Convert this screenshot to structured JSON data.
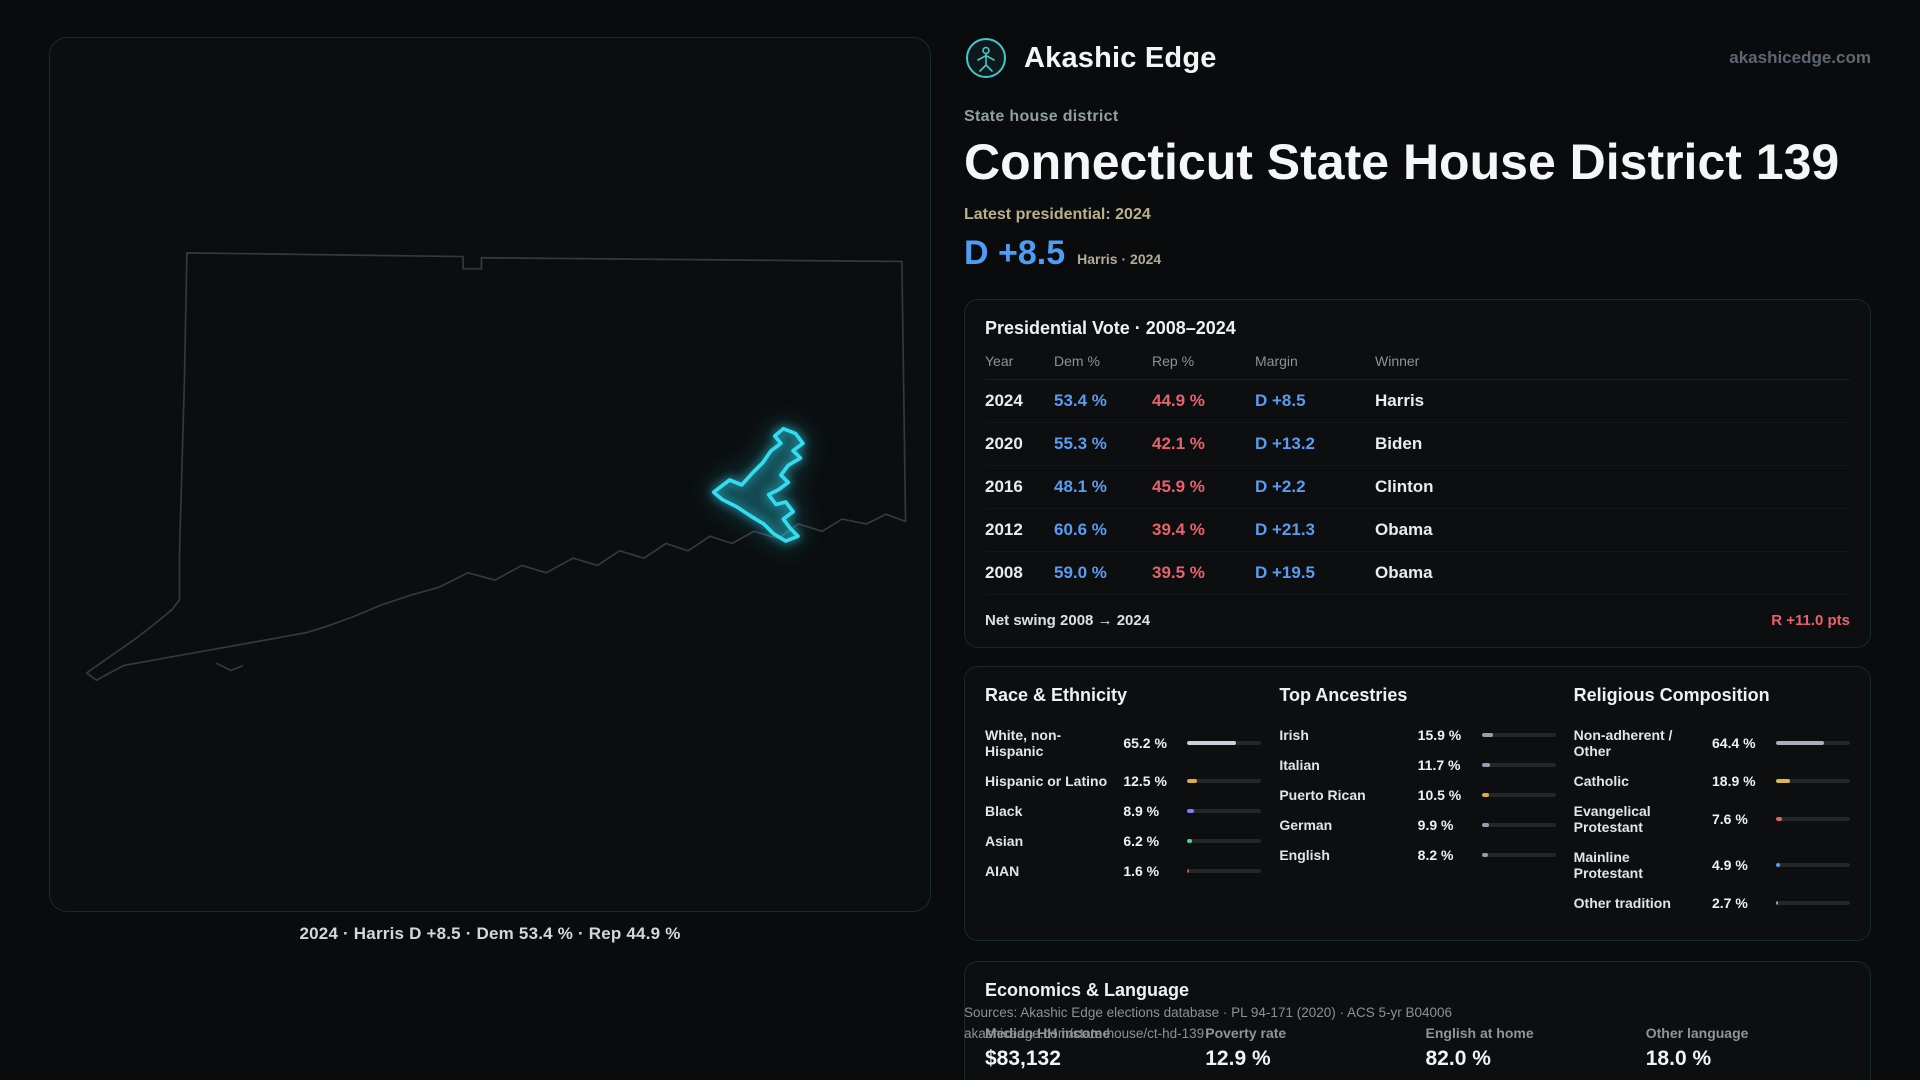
{
  "brand": {
    "name": "Akashic Edge",
    "website": "akashicedge.com"
  },
  "header": {
    "category": "State house district",
    "title": "Connecticut State House District 139",
    "latest_label": "Latest presidential: 2024",
    "margin": "D +8.5",
    "margin_note": "Harris · 2024"
  },
  "map": {
    "caption": "2024 · Harris D +8.5 · Dem 53.4 % · Rep 44.9 %"
  },
  "presidential": {
    "title": "Presidential Vote · 2008–2024",
    "columns": [
      "Year",
      "Dem %",
      "Rep %",
      "Margin",
      "Winner"
    ],
    "rows": [
      {
        "year": "2024",
        "dem": "53.4 %",
        "rep": "44.9 %",
        "margin": "D +8.5",
        "winner": "Harris"
      },
      {
        "year": "2020",
        "dem": "55.3 %",
        "rep": "42.1 %",
        "margin": "D +13.2",
        "winner": "Biden"
      },
      {
        "year": "2016",
        "dem": "48.1 %",
        "rep": "45.9 %",
        "margin": "D +2.2",
        "winner": "Clinton"
      },
      {
        "year": "2012",
        "dem": "60.6 %",
        "rep": "39.4 %",
        "margin": "D +21.3",
        "winner": "Obama"
      },
      {
        "year": "2008",
        "dem": "59.0 %",
        "rep": "39.5 %",
        "margin": "D +19.5",
        "winner": "Obama"
      }
    ],
    "net_swing_label": "Net swing 2008 → 2024",
    "net_swing_value": "R +11.0 pts"
  },
  "race": {
    "title": "Race & Ethnicity",
    "items": [
      {
        "label": "White, non-Hispanic",
        "value": "65.2 %",
        "pct": 65.2,
        "color": "#c9d2da"
      },
      {
        "label": "Hispanic or Latino",
        "value": "12.5 %",
        "pct": 12.5,
        "color": "#e3a84e"
      },
      {
        "label": "Black",
        "value": "8.9 %",
        "pct": 8.9,
        "color": "#8678f9"
      },
      {
        "label": "Asian",
        "value": "6.2 %",
        "pct": 6.2,
        "color": "#43d6a0"
      },
      {
        "label": "AIAN",
        "value": "1.6 %",
        "pct": 1.6,
        "color": "#c05a52"
      }
    ]
  },
  "ancestries": {
    "title": "Top Ancestries",
    "items": [
      {
        "label": "Irish",
        "value": "15.9 %",
        "pct": 15.9,
        "color": "#93a0b4"
      },
      {
        "label": "Italian",
        "value": "11.7 %",
        "pct": 11.7,
        "color": "#93a0b4"
      },
      {
        "label": "Puerto Rican",
        "value": "10.5 %",
        "pct": 10.5,
        "color": "#e3a84e"
      },
      {
        "label": "German",
        "value": "9.9 %",
        "pct": 9.9,
        "color": "#93a0b4"
      },
      {
        "label": "English",
        "value": "8.2 %",
        "pct": 8.2,
        "color": "#93a0b4"
      }
    ]
  },
  "religion": {
    "title": "Religious Composition",
    "items": [
      {
        "label": "Non-adherent / Other",
        "value": "64.4 %",
        "pct": 64.4,
        "color": "#a7b0ba"
      },
      {
        "label": "Catholic",
        "value": "18.9 %",
        "pct": 18.9,
        "color": "#e0b652"
      },
      {
        "label": "Evangelical Protestant",
        "value": "7.6 %",
        "pct": 7.6,
        "color": "#e2606c"
      },
      {
        "label": "Mainline Protestant",
        "value": "4.9 %",
        "pct": 4.9,
        "color": "#5b9cf0"
      },
      {
        "label": "Other tradition",
        "value": "2.7 %",
        "pct": 2.7,
        "color": "#9aa3ad"
      }
    ]
  },
  "economics": {
    "title": "Economics & Language",
    "stats": [
      {
        "label": "Median HH income",
        "value": "$83,132"
      },
      {
        "label": "Poverty rate",
        "value": "12.9 %"
      },
      {
        "label": "English at home",
        "value": "82.0 %"
      },
      {
        "label": "Other language",
        "value": "18.0 %"
      }
    ]
  },
  "footer": {
    "sources": "Sources: Akashic Edge elections database · PL 94-171 (2020) · ACS 5-yr B04006",
    "url": "akashicedge.com/state-house/ct-hd-139"
  },
  "colors": {
    "dem_blue": "#5b9cf0",
    "rep_red": "#e8626e",
    "district_cyan": "#35dcf0",
    "accent_tan": "#bab18b"
  }
}
